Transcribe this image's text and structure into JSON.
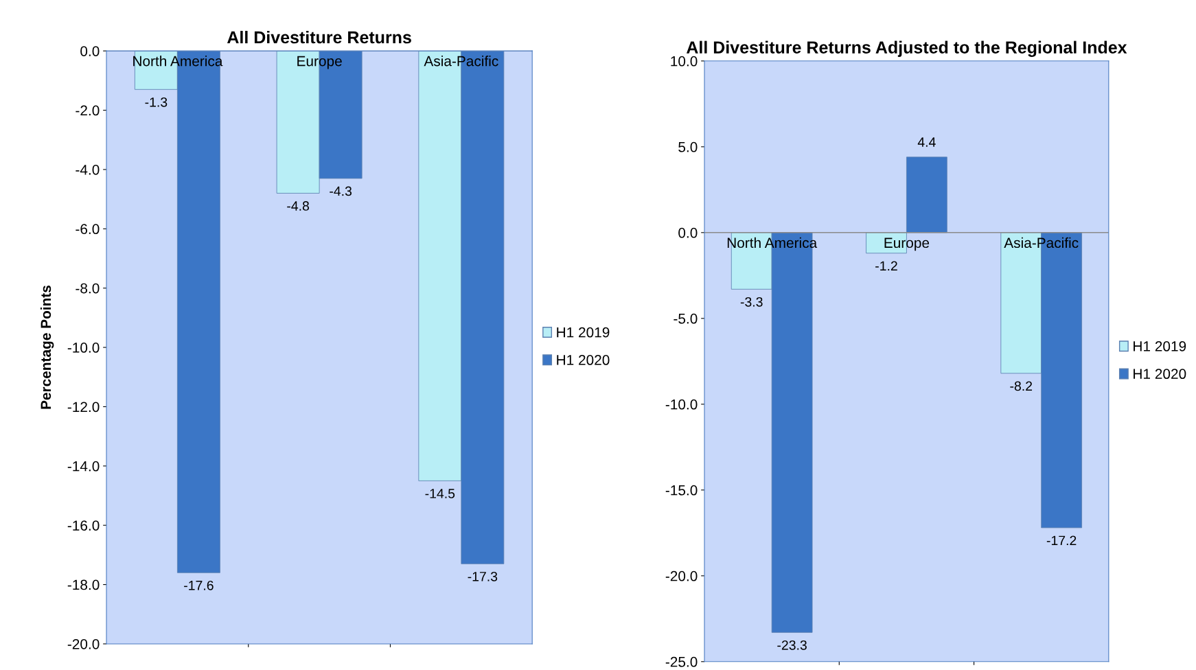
{
  "chart_data": [
    {
      "type": "bar",
      "title": "All Divestiture Returns",
      "ylabel": "Percentage Points",
      "categories": [
        "North America",
        "Europe",
        "Asia-Pacific"
      ],
      "series": [
        {
          "name": "H1 2019",
          "color": "#b8eef6",
          "values": [
            -1.3,
            -4.8,
            -14.5
          ]
        },
        {
          "name": "H1 2020",
          "color": "#3b76c6",
          "values": [
            -17.6,
            -4.3,
            -17.3
          ]
        }
      ],
      "ylim": [
        -20,
        0
      ],
      "yticks": [
        {
          "value": 0,
          "label": "0.0"
        },
        {
          "value": -2,
          "label": "-2.0"
        },
        {
          "value": -4,
          "label": "-4.0"
        },
        {
          "value": -6,
          "label": "-6.0"
        },
        {
          "value": -8,
          "label": "-8.0"
        },
        {
          "value": -10,
          "label": "-10.0"
        },
        {
          "value": -12,
          "label": "-12.0"
        },
        {
          "value": -14,
          "label": "-14.0"
        },
        {
          "value": -16,
          "label": "-16.0"
        },
        {
          "value": -18,
          "label": "-18.0"
        },
        {
          "value": -20,
          "label": "-20.0"
        }
      ],
      "data_labels": true,
      "legend": "right",
      "grid": false
    },
    {
      "type": "bar",
      "title": "All Divestiture Returns Adjusted to the Regional Index",
      "categories": [
        "North America",
        "Europe",
        "Asia-Pacific"
      ],
      "series": [
        {
          "name": "H1 2019",
          "color": "#b8eef6",
          "values": [
            -3.3,
            -1.2,
            -8.2
          ]
        },
        {
          "name": "H1 2020",
          "color": "#3b76c6",
          "values": [
            -23.3,
            4.4,
            -17.2
          ]
        }
      ],
      "ylim": [
        -25,
        10
      ],
      "yticks": [
        {
          "value": 10,
          "label": "10.0"
        },
        {
          "value": 5,
          "label": "5.0"
        },
        {
          "value": 0,
          "label": "0.0"
        },
        {
          "value": -5,
          "label": "-5.0"
        },
        {
          "value": -10,
          "label": "-10.0"
        },
        {
          "value": -15,
          "label": "-15.0"
        },
        {
          "value": -20,
          "label": "-20.0"
        },
        {
          "value": -25,
          "label": "-25.0"
        }
      ],
      "data_labels": true,
      "legend": "right",
      "grid": false
    }
  ]
}
